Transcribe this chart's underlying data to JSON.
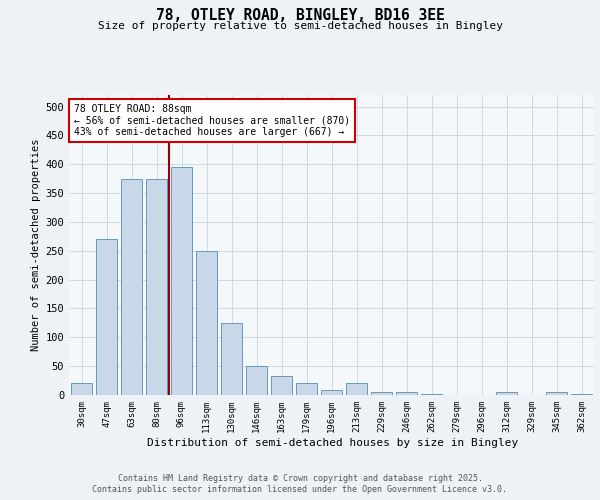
{
  "title1": "78, OTLEY ROAD, BINGLEY, BD16 3EE",
  "title2": "Size of property relative to semi-detached houses in Bingley",
  "xlabel": "Distribution of semi-detached houses by size in Bingley",
  "ylabel": "Number of semi-detached properties",
  "categories": [
    "30sqm",
    "47sqm",
    "63sqm",
    "80sqm",
    "96sqm",
    "113sqm",
    "130sqm",
    "146sqm",
    "163sqm",
    "179sqm",
    "196sqm",
    "213sqm",
    "229sqm",
    "246sqm",
    "262sqm",
    "279sqm",
    "296sqm",
    "312sqm",
    "329sqm",
    "345sqm",
    "362sqm"
  ],
  "values": [
    20,
    270,
    375,
    375,
    395,
    250,
    125,
    50,
    33,
    20,
    8,
    20,
    5,
    5,
    2,
    0,
    0,
    5,
    0,
    5,
    2
  ],
  "bar_color": "#c8d8e8",
  "bar_edge_color": "#6699bb",
  "vline_color": "#990000",
  "vline_pos": 3.5,
  "annotation_text": "78 OTLEY ROAD: 88sqm\n← 56% of semi-detached houses are smaller (870)\n43% of semi-detached houses are larger (667) →",
  "annotation_box_color": "#ffffff",
  "annotation_box_edge": "#cc0000",
  "ylim": [
    0,
    520
  ],
  "yticks": [
    0,
    50,
    100,
    150,
    200,
    250,
    300,
    350,
    400,
    450,
    500
  ],
  "footer1": "Contains HM Land Registry data © Crown copyright and database right 2025.",
  "footer2": "Contains public sector information licensed under the Open Government Licence v3.0.",
  "bg_color": "#eef2f6",
  "plot_bg_color": "#f5f8fb",
  "grid_color": "#c8d4de"
}
